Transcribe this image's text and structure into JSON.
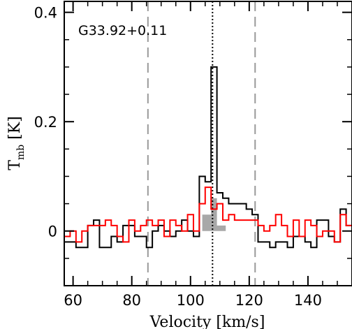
{
  "chart_data": {
    "type": "line",
    "subtype": "step-spectrum",
    "annotation": "G33.92+0.11",
    "xlabel": "Velocity [km/s]",
    "ylabel_main": "T",
    "ylabel_sub": "mb",
    "ylabel_unit": " [K]",
    "xlim": [
      57,
      155
    ],
    "ylim": [
      -0.1,
      0.42
    ],
    "x_ticks": [
      60,
      80,
      100,
      120,
      140
    ],
    "y_ticks": [
      0,
      0.2,
      0.4
    ],
    "y_tick_labels": [
      "0",
      "0.2",
      "0.4"
    ],
    "grid": false,
    "vlines": [
      {
        "x": 85.5,
        "style": "dashed",
        "color": "#999999"
      },
      {
        "x": 107.5,
        "style": "dotted",
        "color": "#000000"
      },
      {
        "x": 122,
        "style": "dashed",
        "color": "#999999"
      }
    ],
    "series": [
      {
        "color": "#000000",
        "x": [
          57,
          59,
          61,
          63,
          65,
          67,
          69,
          71,
          73,
          75,
          77,
          79,
          81,
          83,
          85,
          87,
          89,
          91,
          93,
          95,
          97,
          99,
          101,
          103,
          105,
          107,
          109,
          111,
          113,
          115,
          117,
          119,
          121,
          123,
          125,
          127,
          129,
          131,
          133,
          135,
          137,
          139,
          141,
          143,
          145,
          147,
          149,
          151,
          153,
          155
        ],
        "y": [
          -0.02,
          -0.02,
          -0.03,
          -0.03,
          0.01,
          0.02,
          -0.03,
          -0.03,
          -0.01,
          -0.02,
          0.01,
          0.01,
          -0.01,
          -0.01,
          -0.03,
          0.0,
          0.01,
          0.0,
          -0.01,
          0.0,
          0.02,
          0.0,
          -0.01,
          0.1,
          0.09,
          0.3,
          0.07,
          0.06,
          0.05,
          0.05,
          0.05,
          0.04,
          0.03,
          -0.02,
          -0.02,
          -0.03,
          -0.02,
          -0.02,
          -0.03,
          -0.01,
          -0.01,
          -0.02,
          -0.03,
          0.02,
          0.02,
          -0.01,
          -0.02,
          0.04,
          0.01,
          0.01
        ]
      },
      {
        "color": "#ff0000",
        "x": [
          57,
          59,
          61,
          63,
          65,
          67,
          69,
          71,
          73,
          75,
          77,
          79,
          81,
          83,
          85,
          87,
          89,
          91,
          93,
          95,
          97,
          99,
          101,
          103,
          105,
          107,
          109,
          111,
          113,
          115,
          117,
          119,
          121,
          123,
          125,
          127,
          129,
          131,
          133,
          135,
          137,
          139,
          141,
          143,
          145,
          147,
          149,
          151,
          153,
          155
        ],
        "y": [
          -0.01,
          0.0,
          -0.02,
          0.0,
          0.01,
          0.01,
          0.01,
          0.02,
          0.01,
          -0.01,
          -0.02,
          0.02,
          0.0,
          0.01,
          0.02,
          0.01,
          0.02,
          -0.01,
          0.02,
          0.01,
          0.0,
          0.03,
          0.0,
          0.05,
          0.08,
          0.04,
          0.05,
          0.02,
          0.03,
          0.02,
          0.02,
          0.02,
          0.02,
          0.01,
          0.0,
          0.01,
          0.03,
          0.01,
          -0.01,
          0.02,
          -0.01,
          0.02,
          0.01,
          -0.01,
          0.0,
          0.0,
          -0.02,
          0.03,
          0.01,
          0.01
        ]
      }
    ],
    "shaded_region": {
      "color": "#a8a8a8",
      "x": [
        103,
        104,
        105,
        106,
        107,
        109,
        111,
        112
      ],
      "y": [
        0.0,
        0.03,
        0.03,
        0.03,
        0.06,
        0.01,
        0.01,
        0.01
      ]
    }
  }
}
